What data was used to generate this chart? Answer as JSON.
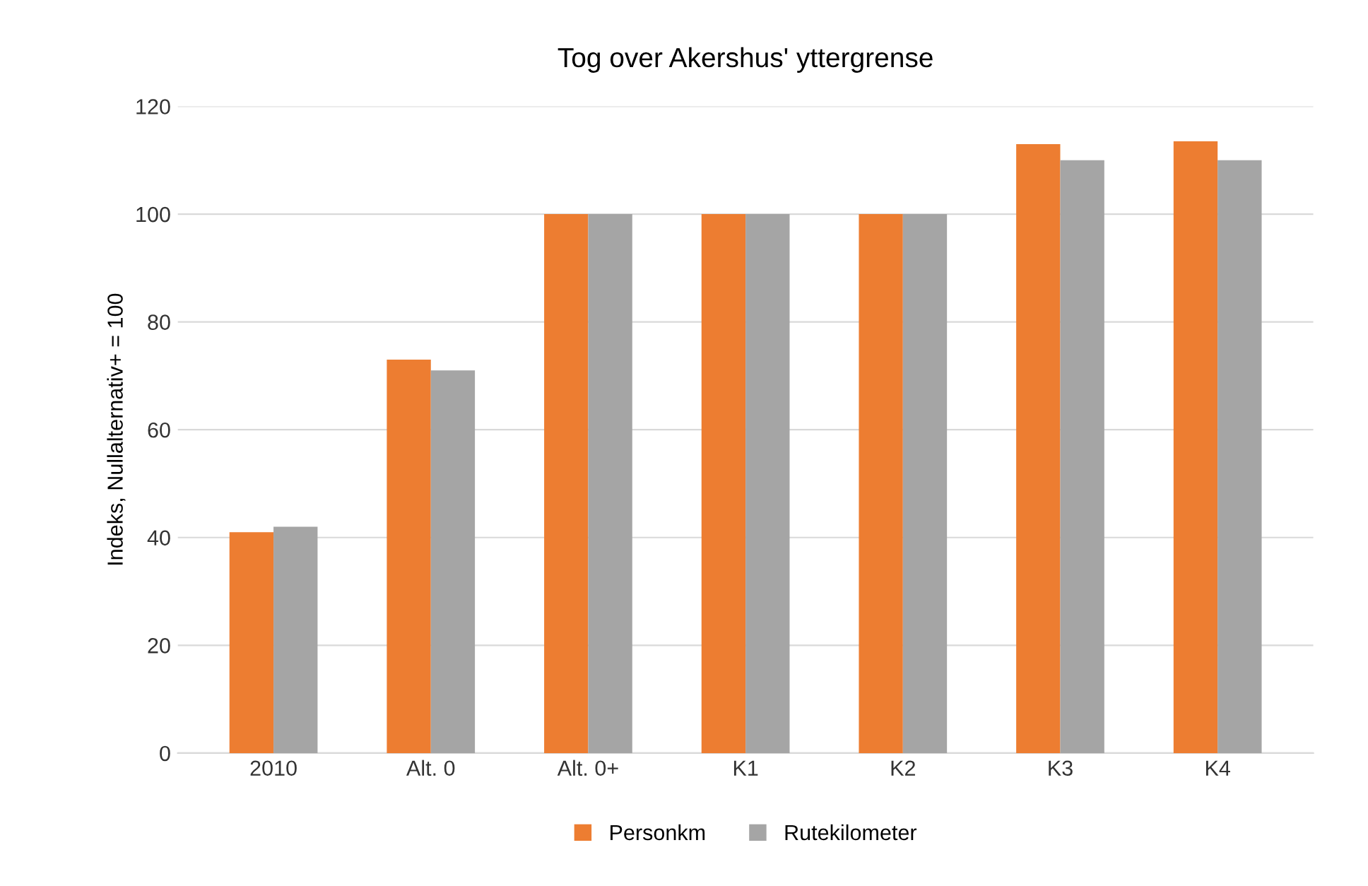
{
  "chart_data": {
    "type": "bar",
    "title": "Tog over Akershus' yttergrense",
    "ylabel": "Indeks, Nullalternativ+ = 100",
    "categories": [
      "2010",
      "Alt. 0",
      "Alt. 0+",
      "K1",
      "K2",
      "K3",
      "K4"
    ],
    "series": [
      {
        "name": "Personkm",
        "color": "#ed7d31",
        "values": [
          41,
          73,
          100,
          100,
          100,
          113,
          113.5
        ]
      },
      {
        "name": "Rutekilometer",
        "color": "#a5a5a5",
        "values": [
          42,
          71,
          100,
          100,
          100,
          110,
          110
        ]
      }
    ],
    "ylim": [
      0,
      120
    ],
    "yticks": [
      0,
      20,
      40,
      60,
      80,
      100,
      120
    ],
    "grid": "y",
    "legend": "bottom"
  }
}
